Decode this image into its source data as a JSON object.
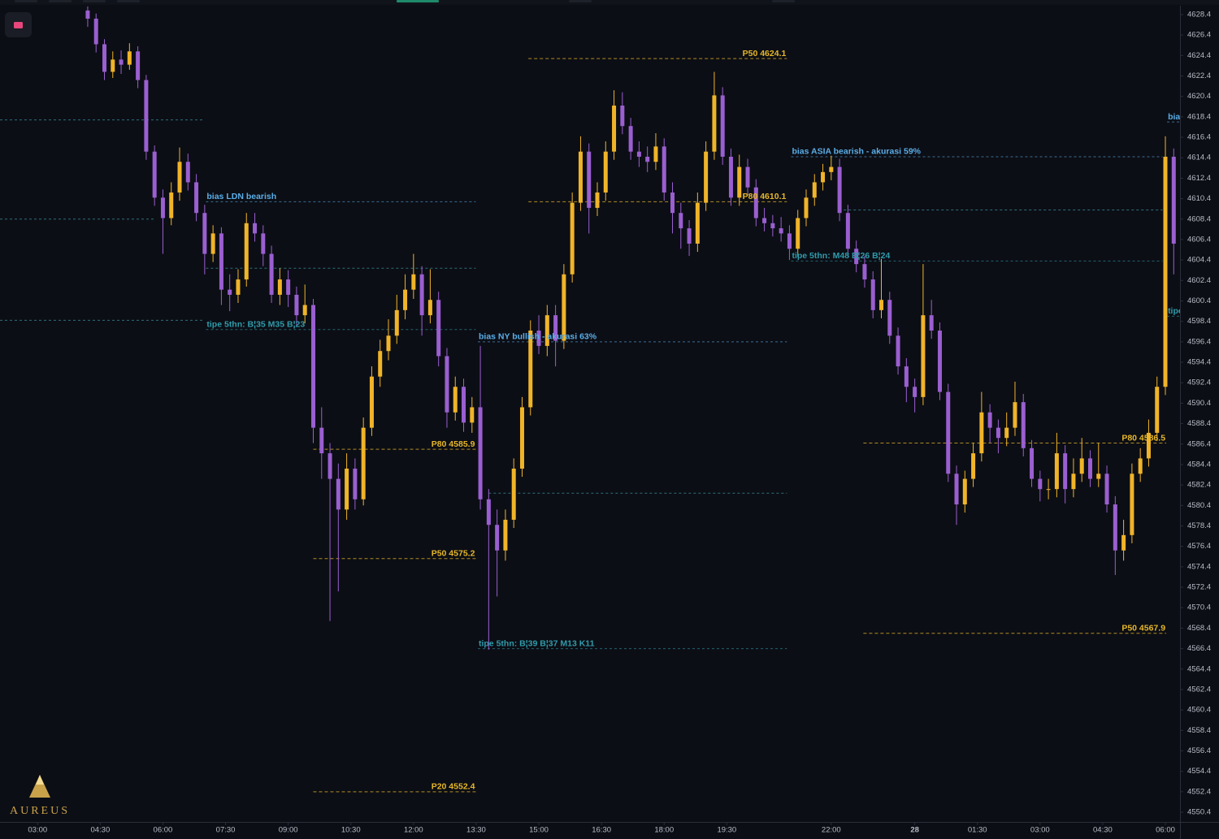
{
  "brand": "AUREUS",
  "chart_data": {
    "type": "candlestick",
    "up_color": "#f0b429",
    "down_color": "#9a5fd0",
    "xlim": [
      2.1,
      30.35
    ],
    "ylim": [
      4549.45,
      4629.27
    ],
    "xticks": [
      {
        "value": 3,
        "label": "03:00"
      },
      {
        "value": 4.5,
        "label": "04:30"
      },
      {
        "value": 6,
        "label": "06:00"
      },
      {
        "value": 7.5,
        "label": "07:30"
      },
      {
        "value": 9,
        "label": "09:00"
      },
      {
        "value": 10.5,
        "label": "10:30"
      },
      {
        "value": 12,
        "label": "12:00"
      },
      {
        "value": 13.5,
        "label": "13:30"
      },
      {
        "value": 15,
        "label": "15:00"
      },
      {
        "value": 16.5,
        "label": "16:30"
      },
      {
        "value": 18,
        "label": "18:00"
      },
      {
        "value": 19.5,
        "label": "19:30"
      },
      {
        "value": 22,
        "label": "22:00"
      },
      {
        "value": 24,
        "label": "28"
      },
      {
        "value": 25.5,
        "label": "01:30"
      },
      {
        "value": 27,
        "label": "03:00"
      },
      {
        "value": 28.5,
        "label": "04:30"
      },
      {
        "value": 30,
        "label": "06:00"
      }
    ],
    "yticks": [
      4550.4,
      4552.4,
      4554.4,
      4556.4,
      4558.4,
      4560.4,
      4562.4,
      4564.4,
      4566.4,
      4568.4,
      4570.4,
      4572.4,
      4574.4,
      4576.4,
      4578.4,
      4580.4,
      4582.4,
      4584.4,
      4586.4,
      4588.4,
      4590.4,
      4592.4,
      4594.4,
      4596.4,
      4598.4,
      4600.4,
      4602.4,
      4604.4,
      4606.4,
      4608.4,
      4610.4,
      4612.4,
      4614.4,
      4616.4,
      4618.4,
      4620.4,
      4622.4,
      4624.4,
      4626.4,
      4628.4
    ],
    "x": [
      4.2,
      4.4,
      4.6,
      4.8,
      5,
      5.2,
      5.4,
      5.6,
      5.8,
      6,
      6.2,
      6.4,
      6.6,
      6.8,
      7,
      7.2,
      7.4,
      7.6,
      7.8,
      8,
      8.2,
      8.4,
      8.6,
      8.8,
      9,
      9.2,
      9.4,
      9.6,
      9.8,
      10,
      10.2,
      10.4,
      10.6,
      10.8,
      11,
      11.2,
      11.4,
      11.6,
      11.8,
      12,
      12.2,
      12.4,
      12.6,
      12.8,
      13,
      13.2,
      13.4,
      13.6,
      13.8,
      14,
      14.2,
      14.4,
      14.6,
      14.8,
      15,
      15.2,
      15.4,
      15.6,
      15.8,
      16,
      16.2,
      16.4,
      16.6,
      16.8,
      17,
      17.2,
      17.4,
      17.6,
      17.8,
      18,
      18.2,
      18.4,
      18.6,
      18.8,
      19,
      19.2,
      19.4,
      19.6,
      19.8,
      20,
      20.2,
      20.4,
      20.6,
      20.8,
      21,
      21.2,
      21.4,
      21.6,
      21.8,
      22,
      22.2,
      22.4,
      22.6,
      22.8,
      23,
      23.2,
      23.4,
      23.6,
      23.8,
      24,
      24.2,
      24.4,
      24.6,
      24.8,
      25,
      25.2,
      25.4,
      25.6,
      25.8,
      26,
      26.2,
      26.4,
      26.6,
      26.8,
      27,
      27.2,
      27.4,
      27.6,
      27.8,
      28,
      28.2,
      28.4,
      28.6,
      28.8,
      29,
      29.2,
      29.4,
      29.6,
      29.8,
      30,
      30.2
    ],
    "open": [
      4628.8,
      4628.0,
      4625.5,
      4622.8,
      4624.0,
      4623.5,
      4624.8,
      4622.0,
      4615.0,
      4610.5,
      4608.5,
      4611.0,
      4614.0,
      4612.0,
      4609.0,
      4605.0,
      4607.0,
      4601.5,
      4601.0,
      4602.5,
      4608.0,
      4607.0,
      4605.0,
      4601.0,
      4602.5,
      4601.0,
      4599.0,
      4600.0,
      4588.0,
      4585.5,
      4583.0,
      4580.0,
      4584.0,
      4581.0,
      4588.0,
      4593.0,
      4595.5,
      4597.0,
      4599.5,
      4601.5,
      4603.0,
      4599.0,
      4600.5,
      4595.0,
      4589.5,
      4592.0,
      4588.5,
      4590.0,
      4581.0,
      4578.5,
      4576.0,
      4579.0,
      4584.0,
      4590.0,
      4597.5,
      4596.0,
      4599.0,
      4596.5,
      4603.0,
      4610.0,
      4615.0,
      4609.5,
      4611.0,
      4615.0,
      4619.5,
      4617.5,
      4615.0,
      4614.5,
      4614.0,
      4615.5,
      4611.0,
      4609.0,
      4607.5,
      4606.0,
      4610.0,
      4615.0,
      4620.5,
      4614.5,
      4610.5,
      4613.5,
      4611.5,
      4608.5,
      4608.0,
      4607.5,
      4607.0,
      4605.5,
      4608.5,
      4610.5,
      4612.0,
      4613.0,
      4613.5,
      4609.0,
      4605.5,
      4604.0,
      4602.5,
      4599.5,
      4600.5,
      4597.0,
      4594.0,
      4592.0,
      4591.0,
      4599.0,
      4597.5,
      4591.5,
      4583.5,
      4580.5,
      4583.0,
      4585.5,
      4589.5,
      4588.0,
      4587.0,
      4588.0,
      4590.5,
      4586.0,
      4583.0,
      4582.0,
      4582.0,
      4585.5,
      4582.0,
      4583.5,
      4585.0,
      4583.0,
      4583.5,
      4580.5,
      4576.0,
      4577.5,
      4583.5,
      4585.0,
      4587.5,
      4592.0,
      4614.5
    ],
    "high": [
      4629.2,
      4628.5,
      4626.0,
      4624.8,
      4624.9,
      4625.6,
      4625.3,
      4622.5,
      4615.6,
      4611.3,
      4612.0,
      4615.4,
      4614.8,
      4612.8,
      4609.8,
      4607.8,
      4607.6,
      4603.0,
      4603.5,
      4609.0,
      4609.0,
      4607.8,
      4605.8,
      4603.6,
      4603.4,
      4601.8,
      4602.0,
      4600.6,
      4590.0,
      4586.5,
      4584.5,
      4585.5,
      4585.0,
      4589.0,
      4594.0,
      4596.6,
      4598.6,
      4601.0,
      4603.0,
      4605.0,
      4603.8,
      4603.5,
      4601.3,
      4595.8,
      4593.0,
      4592.8,
      4591.0,
      4596.0,
      4582.0,
      4580.0,
      4580.0,
      4585.0,
      4591.0,
      4598.5,
      4599.0,
      4600.0,
      4600.0,
      4604.0,
      4611.0,
      4616.5,
      4615.8,
      4612.0,
      4616.0,
      4621.0,
      4620.8,
      4618.3,
      4616.0,
      4615.5,
      4616.8,
      4616.3,
      4612.0,
      4610.0,
      4608.3,
      4611.0,
      4616.0,
      4622.8,
      4621.3,
      4615.3,
      4614.7,
      4614.3,
      4612.3,
      4609.5,
      4608.8,
      4608.6,
      4607.8,
      4609.3,
      4611.3,
      4612.8,
      4613.8,
      4614.6,
      4614.3,
      4609.8,
      4606.3,
      4604.8,
      4603.3,
      4604.5,
      4601.3,
      4597.8,
      4594.8,
      4592.8,
      4604.0,
      4600.5,
      4598.3,
      4592.3,
      4584.3,
      4583.8,
      4586.5,
      4591.5,
      4590.3,
      4588.8,
      4589.5,
      4592.5,
      4591.3,
      4586.8,
      4583.8,
      4583.0,
      4587.5,
      4586.3,
      4585.0,
      4587.0,
      4585.8,
      4586.5,
      4584.3,
      4581.3,
      4579.0,
      4584.5,
      4586.0,
      4588.8,
      4593.0,
      4616.5,
      4615.3
    ],
    "low": [
      4627.2,
      4624.7,
      4622.0,
      4622.2,
      4622.6,
      4623.0,
      4621.2,
      4614.2,
      4609.7,
      4605.0,
      4607.8,
      4610.2,
      4611.2,
      4608.2,
      4603.0,
      4604.2,
      4600.0,
      4599.4,
      4600.2,
      4601.8,
      4606.2,
      4603.8,
      4600.2,
      4600.0,
      4599.8,
      4598.0,
      4598.2,
      4586.5,
      4583.0,
      4569.1,
      4572.0,
      4579.0,
      4580.0,
      4580.4,
      4587.2,
      4592.0,
      4594.6,
      4596.2,
      4598.6,
      4600.6,
      4597.0,
      4598.2,
      4594.0,
      4588.0,
      4588.7,
      4587.6,
      4587.5,
      4580.0,
      4566.3,
      4571.5,
      4575.0,
      4578.2,
      4583.2,
      4589.2,
      4595.2,
      4595.0,
      4594.0,
      4595.7,
      4602.2,
      4609.2,
      4607.0,
      4608.7,
      4610.2,
      4614.2,
      4616.7,
      4614.2,
      4613.5,
      4613.0,
      4613.2,
      4610.2,
      4607.0,
      4605.5,
      4604.8,
      4605.2,
      4609.2,
      4614.2,
      4613.7,
      4609.7,
      4609.7,
      4610.7,
      4607.7,
      4607.2,
      4606.7,
      4606.2,
      4604.4,
      4604.7,
      4607.7,
      4609.7,
      4611.2,
      4612.2,
      4608.2,
      4604.7,
      4603.2,
      4601.7,
      4598.7,
      4598.7,
      4596.2,
      4593.2,
      4590.5,
      4589.5,
      4590.2,
      4596.7,
      4590.7,
      4582.7,
      4578.5,
      4579.7,
      4582.2,
      4584.7,
      4586.5,
      4585.5,
      4586.2,
      4587.2,
      4585.2,
      4582.2,
      4580.8,
      4581.0,
      4581.2,
      4580.6,
      4581.2,
      4582.7,
      4582.2,
      4582.2,
      4579.7,
      4573.6,
      4575.0,
      4576.7,
      4582.7,
      4584.2,
      4586.7,
      4591.2,
      4603.0
    ],
    "close": [
      4628.0,
      4625.5,
      4622.8,
      4624.0,
      4623.5,
      4624.8,
      4622.0,
      4615.0,
      4610.5,
      4608.5,
      4611.0,
      4614.0,
      4612.0,
      4609.0,
      4605.0,
      4607.0,
      4601.5,
      4601.0,
      4602.5,
      4608.0,
      4607.0,
      4605.0,
      4601.0,
      4602.5,
      4601.0,
      4599.0,
      4600.0,
      4588.0,
      4585.5,
      4583.0,
      4580.0,
      4584.0,
      4581.0,
      4588.0,
      4593.0,
      4595.5,
      4597.0,
      4599.5,
      4601.5,
      4603.0,
      4599.0,
      4600.5,
      4595.0,
      4589.5,
      4592.0,
      4588.5,
      4590.0,
      4581.0,
      4578.5,
      4576.0,
      4579.0,
      4584.0,
      4590.0,
      4597.5,
      4596.0,
      4599.0,
      4596.5,
      4603.0,
      4610.0,
      4615.0,
      4609.5,
      4611.0,
      4615.0,
      4619.5,
      4617.5,
      4615.0,
      4614.5,
      4614.0,
      4615.5,
      4611.0,
      4609.0,
      4607.5,
      4606.0,
      4610.0,
      4615.0,
      4620.5,
      4614.5,
      4610.5,
      4613.5,
      4611.5,
      4608.5,
      4608.0,
      4607.5,
      4607.0,
      4605.5,
      4608.5,
      4610.5,
      4612.0,
      4613.0,
      4613.5,
      4609.0,
      4605.5,
      4604.0,
      4602.5,
      4599.5,
      4600.5,
      4597.0,
      4594.0,
      4592.0,
      4591.0,
      4599.0,
      4597.5,
      4591.5,
      4583.5,
      4580.5,
      4583.0,
      4585.5,
      4589.5,
      4588.0,
      4587.0,
      4588.0,
      4590.5,
      4586.0,
      4583.0,
      4582.0,
      4582.0,
      4585.5,
      4582.0,
      4583.5,
      4585.0,
      4583.0,
      4583.5,
      4580.5,
      4576.0,
      4577.5,
      4583.5,
      4585.0,
      4587.5,
      4592.0,
      4614.5,
      4606.0
    ],
    "levels": [
      {
        "price": 4618.1,
        "x0": 2.1,
        "x1": 6.97
      },
      {
        "price": 4608.4,
        "x0": 2.1,
        "x1": 5.8
      },
      {
        "price": 4598.5,
        "x0": 2.1,
        "x1": 6.97
      },
      {
        "price": 4603.6,
        "x0": 7.03,
        "x1": 13.49
      },
      {
        "price": 4581.6,
        "x0": 13.8,
        "x1": 20.94
      },
      {
        "price": 4609.3,
        "x0": 22.3,
        "x1": 29.93
      }
    ],
    "percentile_color": "#e6b728",
    "percentile_levels": [
      {
        "text": "P50 4624.1",
        "price": 4624.1,
        "x0": 14.75,
        "x1": 20.94
      },
      {
        "text": "P80 4610.1",
        "price": 4610.1,
        "x0": 14.75,
        "x1": 20.94
      },
      {
        "text": "P80 4585.9",
        "price": 4585.9,
        "x0": 9.6,
        "x1": 13.49
      },
      {
        "text": "P50 4575.2",
        "price": 4575.2,
        "x0": 9.6,
        "x1": 13.49
      },
      {
        "text": "P20 4552.4",
        "price": 4552.4,
        "x0": 9.6,
        "x1": 13.49
      },
      {
        "text": "P80 4586.5",
        "price": 4586.5,
        "x0": 22.77,
        "x1": 30.02
      },
      {
        "text": "P50 4567.9",
        "price": 4567.9,
        "x0": 22.77,
        "x1": 30.02
      }
    ],
    "bias_notes": [
      {
        "text": "bias LDN bearish",
        "price": 4610.1,
        "x0": 7.03,
        "x1": 13.49,
        "color": "#5aaee8"
      },
      {
        "text": "tipe 5thn: B¦35 M35 B¦23",
        "price": 4597.6,
        "x0": 7.03,
        "x1": 13.49,
        "color": "#2f9cab"
      },
      {
        "text": "bias NY bullish - akurasi 63%",
        "price": 4596.4,
        "x0": 13.54,
        "x1": 20.94,
        "color": "#5aaee8"
      },
      {
        "text": "tipe 5thn: B¦39 B¦37 M13 K11",
        "price": 4566.4,
        "x0": 13.54,
        "x1": 20.94,
        "color": "#2f9cab"
      },
      {
        "text": "bias ASIA bearish - akurasi 59%",
        "price": 4614.5,
        "x0": 21.04,
        "x1": 29.93,
        "color": "#5aaee8"
      },
      {
        "text": "tipe 5thn: M48 B¦26 B¦24",
        "price": 4604.3,
        "x0": 21.04,
        "x1": 29.93,
        "color": "#2f9cab"
      },
      {
        "text": "bia",
        "price": 4617.9,
        "x0": 30.04,
        "x1": 30.35,
        "color": "#5aaee8"
      },
      {
        "text": "tipe",
        "price": 4598.9,
        "x0": 30.04,
        "x1": 30.35,
        "color": "#2f9cab"
      }
    ]
  }
}
